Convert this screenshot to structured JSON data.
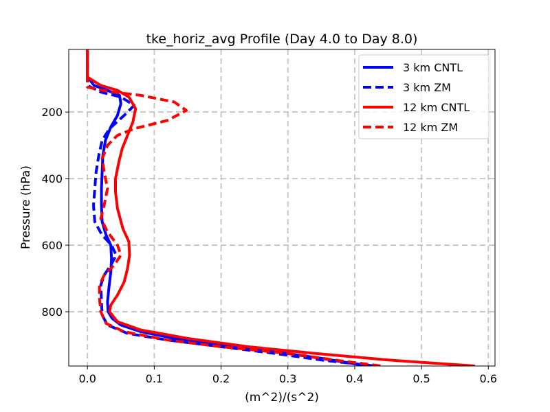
{
  "chart_data": {
    "type": "line",
    "title": "tke_horiz_avg Profile (Day 4.0 to Day 8.0)",
    "xlabel": "(m^2)/(s^2)",
    "ylabel": "Pressure (hPa)",
    "xlim": [
      -0.028,
      0.61
    ],
    "ylim": [
      963,
      12
    ],
    "y_inverted": true,
    "xticks": [
      "0.0",
      "0.1",
      "0.2",
      "0.3",
      "0.4",
      "0.5",
      "0.6"
    ],
    "xtick_values": [
      0,
      0.1,
      0.2,
      0.3,
      0.4,
      0.5,
      0.6
    ],
    "yticks": [
      "200",
      "400",
      "600",
      "800"
    ],
    "ytick_values": [
      200,
      400,
      600,
      800
    ],
    "grid": true,
    "legend_position": "top-right",
    "series": [
      {
        "name": "3 km CNTL",
        "color": "#0000ff",
        "dash": "solid",
        "points": [
          [
            0.0,
            12
          ],
          [
            0.0,
            95
          ],
          [
            0.01,
            120
          ],
          [
            0.03,
            135
          ],
          [
            0.048,
            150
          ],
          [
            0.05,
            175
          ],
          [
            0.045,
            210
          ],
          [
            0.035,
            245
          ],
          [
            0.027,
            285
          ],
          [
            0.023,
            330
          ],
          [
            0.022,
            380
          ],
          [
            0.021,
            430
          ],
          [
            0.021,
            480
          ],
          [
            0.022,
            530
          ],
          [
            0.028,
            570
          ],
          [
            0.035,
            600
          ],
          [
            0.036,
            640
          ],
          [
            0.035,
            680
          ],
          [
            0.032,
            730
          ],
          [
            0.03,
            770
          ],
          [
            0.031,
            800
          ],
          [
            0.037,
            820
          ],
          [
            0.05,
            840
          ],
          [
            0.08,
            860
          ],
          [
            0.13,
            880
          ],
          [
            0.2,
            900
          ],
          [
            0.28,
            920
          ],
          [
            0.35,
            940
          ],
          [
            0.42,
            963
          ]
        ]
      },
      {
        "name": "3 km ZM",
        "color": "#0000ff",
        "dash": "dashed",
        "points": [
          [
            0.0,
            12
          ],
          [
            0.0,
            95
          ],
          [
            0.0,
            120
          ],
          [
            0.02,
            140
          ],
          [
            0.05,
            155
          ],
          [
            0.07,
            180
          ],
          [
            0.055,
            210
          ],
          [
            0.033,
            250
          ],
          [
            0.022,
            285
          ],
          [
            0.017,
            330
          ],
          [
            0.013,
            380
          ],
          [
            0.011,
            430
          ],
          [
            0.009,
            480
          ],
          [
            0.011,
            530
          ],
          [
            0.022,
            570
          ],
          [
            0.036,
            600
          ],
          [
            0.043,
            630
          ],
          [
            0.035,
            660
          ],
          [
            0.025,
            690
          ],
          [
            0.02,
            720
          ],
          [
            0.021,
            770
          ],
          [
            0.022,
            810
          ],
          [
            0.03,
            840
          ],
          [
            0.06,
            865
          ],
          [
            0.12,
            885
          ],
          [
            0.2,
            905
          ],
          [
            0.28,
            925
          ],
          [
            0.35,
            945
          ],
          [
            0.43,
            963
          ]
        ]
      },
      {
        "name": "12 km CNTL",
        "color": "#ff0000",
        "dash": "solid",
        "points": [
          [
            0.0,
            12
          ],
          [
            0.0,
            95
          ],
          [
            0.02,
            120
          ],
          [
            0.045,
            135
          ],
          [
            0.062,
            155
          ],
          [
            0.072,
            190
          ],
          [
            0.068,
            230
          ],
          [
            0.06,
            270
          ],
          [
            0.052,
            310
          ],
          [
            0.047,
            350
          ],
          [
            0.042,
            400
          ],
          [
            0.042,
            440
          ],
          [
            0.045,
            490
          ],
          [
            0.053,
            550
          ],
          [
            0.062,
            590
          ],
          [
            0.063,
            630
          ],
          [
            0.06,
            670
          ],
          [
            0.055,
            710
          ],
          [
            0.045,
            750
          ],
          [
            0.035,
            780
          ],
          [
            0.033,
            800
          ],
          [
            0.045,
            830
          ],
          [
            0.08,
            855
          ],
          [
            0.15,
            880
          ],
          [
            0.24,
            905
          ],
          [
            0.34,
            925
          ],
          [
            0.45,
            945
          ],
          [
            0.58,
            963
          ]
        ]
      },
      {
        "name": "12 km ZM",
        "color": "#ff0000",
        "dash": "dashed",
        "points": [
          [
            0.0,
            12
          ],
          [
            0.0,
            95
          ],
          [
            0.0,
            125
          ],
          [
            0.03,
            138
          ],
          [
            0.08,
            150
          ],
          [
            0.13,
            170
          ],
          [
            0.148,
            195
          ],
          [
            0.12,
            225
          ],
          [
            0.07,
            250
          ],
          [
            0.045,
            270
          ],
          [
            0.03,
            300
          ],
          [
            0.022,
            340
          ],
          [
            0.025,
            380
          ],
          [
            0.03,
            430
          ],
          [
            0.025,
            480
          ],
          [
            0.02,
            520
          ],
          [
            0.03,
            560
          ],
          [
            0.045,
            600
          ],
          [
            0.05,
            630
          ],
          [
            0.04,
            660
          ],
          [
            0.025,
            690
          ],
          [
            0.018,
            720
          ],
          [
            0.018,
            760
          ],
          [
            0.02,
            800
          ],
          [
            0.028,
            835
          ],
          [
            0.055,
            860
          ],
          [
            0.12,
            885
          ],
          [
            0.2,
            905
          ],
          [
            0.3,
            925
          ],
          [
            0.37,
            945
          ],
          [
            0.44,
            963
          ]
        ]
      }
    ]
  }
}
